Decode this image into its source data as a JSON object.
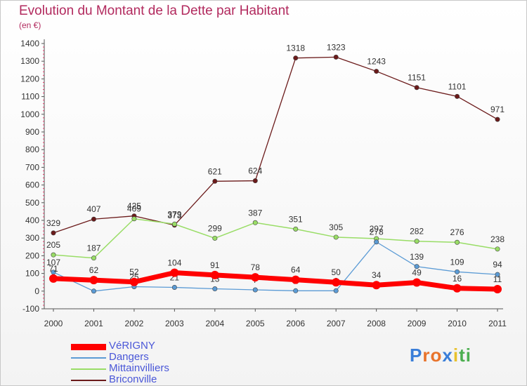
{
  "chart_data": {
    "type": "line",
    "title": "Evolution du Montant de la Dette par Habitant",
    "unit": "(en €)",
    "categories": [
      "2000",
      "2001",
      "2002",
      "2003",
      "2004",
      "2005",
      "2006",
      "2007",
      "2008",
      "2009",
      "2010",
      "2011"
    ],
    "ylim": [
      -100,
      1400
    ],
    "yticks": [
      -100,
      0,
      100,
      200,
      300,
      400,
      500,
      600,
      700,
      800,
      900,
      1000,
      1100,
      1200,
      1300,
      1400
    ],
    "grid": false,
    "legend_position": "bottom-left",
    "series": [
      {
        "name": "VéRIGNY",
        "color": "#ff0000",
        "values": [
          71,
          62,
          52,
          104,
          91,
          78,
          64,
          50,
          34,
          49,
          16,
          11
        ]
      },
      {
        "name": "Dangers",
        "color": "#5b9bd5",
        "values": [
          107,
          0,
          25,
          21,
          13,
          7,
          2,
          2,
          278,
          139,
          109,
          94
        ]
      },
      {
        "name": "Mittainvilliers",
        "color": "#99dd66",
        "values": [
          205,
          187,
          409,
          379,
          299,
          387,
          351,
          305,
          297,
          282,
          276,
          238
        ]
      },
      {
        "name": "Briconville",
        "color": "#6b1a1a",
        "values": [
          329,
          407,
          425,
          373,
          621,
          624,
          1318,
          1323,
          1243,
          1151,
          1101,
          971
        ]
      }
    ]
  },
  "logo": {
    "letters": [
      "P",
      "r",
      "o",
      "x",
      "i",
      "t",
      "i"
    ],
    "colors": [
      "#3a7ed8",
      "#e8732b",
      "#e8732b",
      "#3a7ed8",
      "#e8c12b",
      "#4caf50",
      "#4caf50"
    ]
  }
}
